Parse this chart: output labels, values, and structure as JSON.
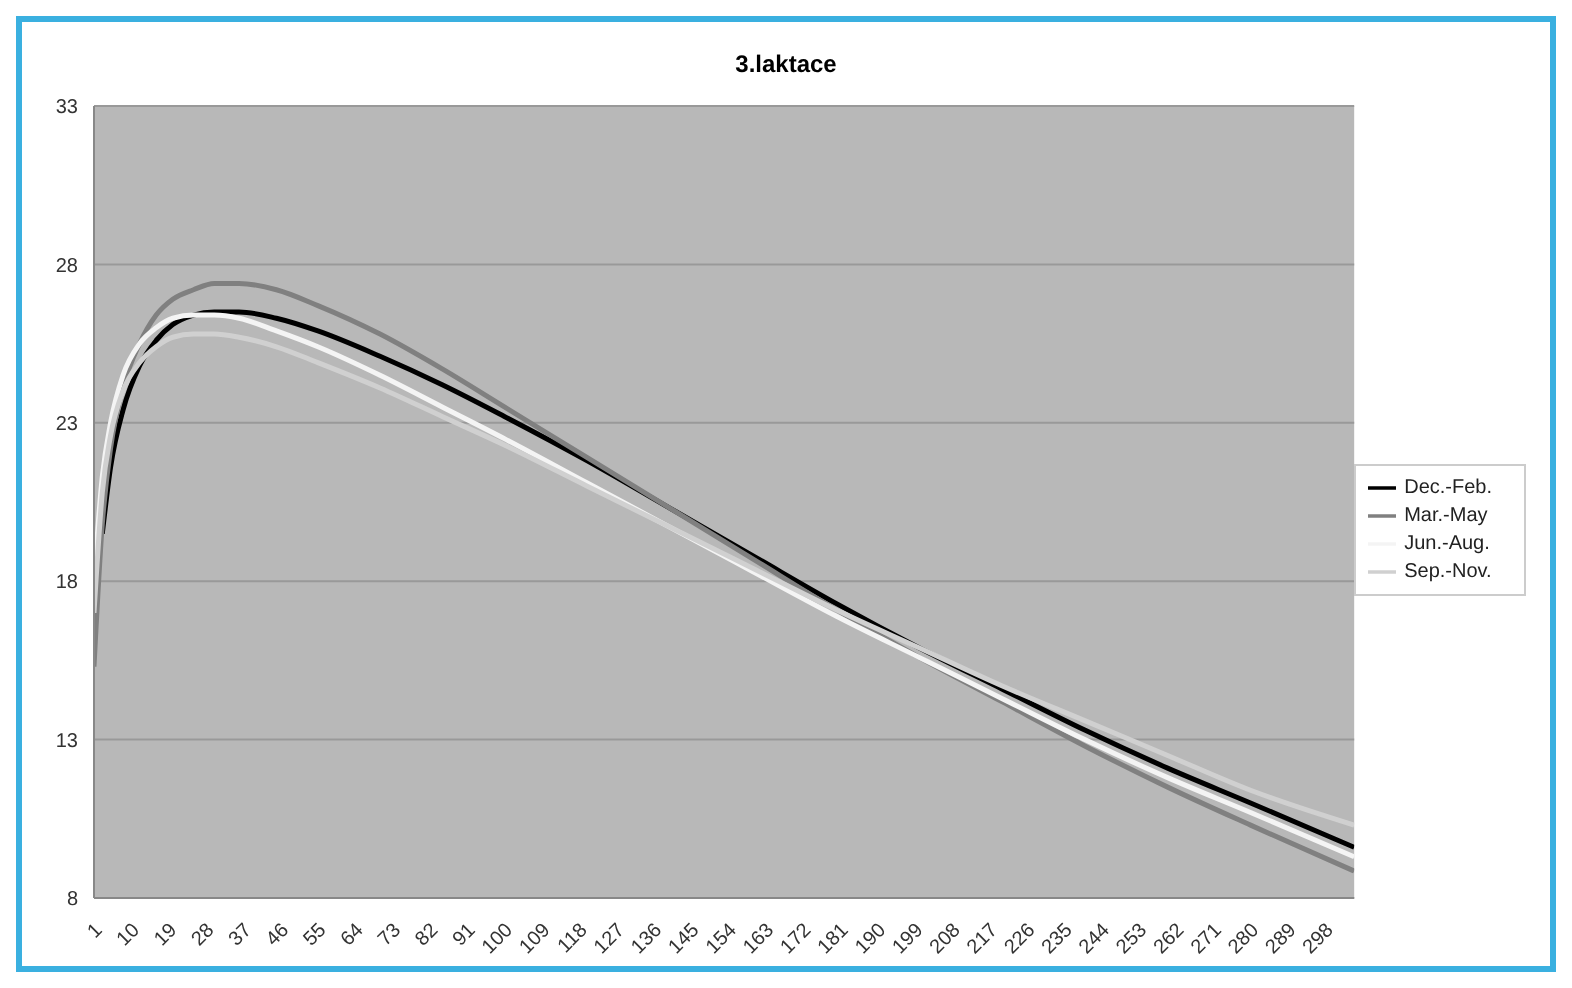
{
  "chart_data": {
    "type": "line",
    "title": "3.laktace",
    "x": [
      1,
      3,
      5,
      8,
      12,
      16,
      20,
      25,
      30,
      36,
      45,
      55,
      70,
      85,
      100,
      120,
      140,
      160,
      180,
      200,
      220,
      240,
      260,
      280,
      305
    ],
    "series": [
      {
        "name": "Dec.-Feb.",
        "color": "#000000",
        "values": [
          null,
          19.5,
          21.6,
          23.4,
          24.8,
          25.6,
          26.1,
          26.4,
          26.5,
          26.5,
          26.3,
          25.9,
          25.1,
          24.2,
          23.2,
          21.8,
          20.3,
          18.8,
          17.3,
          15.9,
          14.6,
          13.3,
          12.1,
          11.0,
          9.6
        ]
      },
      {
        "name": "Mar.-May",
        "color": "#808080",
        "values": [
          15.3,
          19.8,
          22.2,
          24.1,
          25.5,
          26.4,
          26.9,
          27.2,
          27.4,
          27.4,
          27.2,
          26.7,
          25.8,
          24.7,
          23.5,
          21.9,
          20.3,
          18.7,
          17.1,
          15.6,
          14.2,
          12.8,
          11.5,
          10.3,
          8.85
        ]
      },
      {
        "name": "Jun.-Aug.",
        "color": "#f4f4f4",
        "values": [
          18.0,
          21.3,
          23.0,
          24.5,
          25.5,
          26.0,
          26.3,
          26.4,
          26.4,
          26.3,
          25.9,
          25.4,
          24.5,
          23.5,
          22.5,
          21.1,
          19.7,
          18.3,
          16.9,
          15.6,
          14.3,
          13.0,
          11.8,
          10.7,
          9.3
        ]
      },
      {
        "name": "Sep.-Nov.",
        "color": "#d0d0d0",
        "values": [
          17.0,
          20.8,
          22.6,
          24.0,
          24.9,
          25.4,
          25.7,
          25.8,
          25.8,
          25.7,
          25.4,
          24.9,
          24.1,
          23.2,
          22.3,
          21.0,
          19.7,
          18.4,
          17.1,
          15.9,
          14.7,
          13.6,
          12.5,
          11.4,
          10.3
        ]
      }
    ],
    "xlim": [
      1,
      305
    ],
    "xticks": [
      1,
      10,
      19,
      28,
      37,
      46,
      55,
      64,
      73,
      82,
      91,
      100,
      109,
      118,
      127,
      136,
      145,
      154,
      163,
      172,
      181,
      190,
      199,
      208,
      217,
      226,
      235,
      244,
      253,
      262,
      271,
      280,
      289,
      298
    ],
    "ylim": [
      8,
      33
    ],
    "yticks": [
      8,
      13,
      18,
      23,
      28,
      33
    ],
    "grid": "y",
    "legend": "right",
    "marker": "none",
    "line_style": "solid"
  }
}
